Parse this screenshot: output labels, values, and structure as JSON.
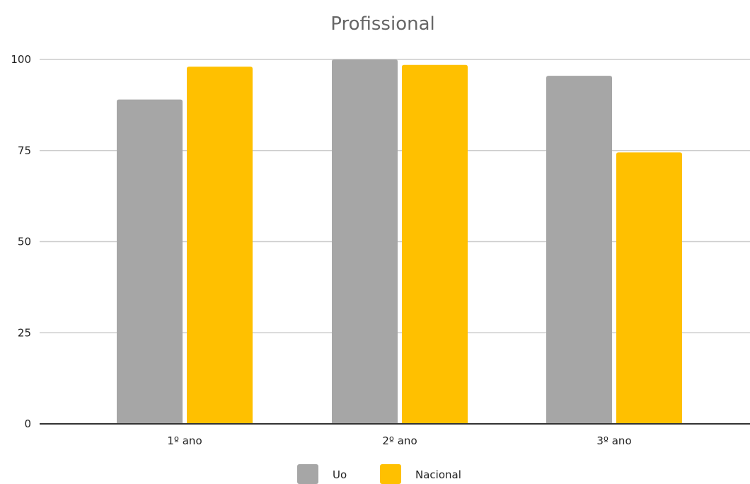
{
  "chart_data": {
    "type": "bar",
    "title": "Profissional",
    "xlabel": "",
    "ylabel": "",
    "categories": [
      "1º ano",
      "2º ano",
      "3º ano"
    ],
    "series": [
      {
        "name": "Uo",
        "color": "#a6a6a6",
        "values": [
          89,
          100,
          95.5
        ]
      },
      {
        "name": "Nacional",
        "color": "#ffc000",
        "values": [
          98,
          98.5,
          74.5
        ]
      }
    ],
    "ylim": [
      0,
      100
    ],
    "yticks": [
      0,
      25,
      50,
      75,
      100
    ],
    "grid": true,
    "legend_position": "bottom"
  }
}
